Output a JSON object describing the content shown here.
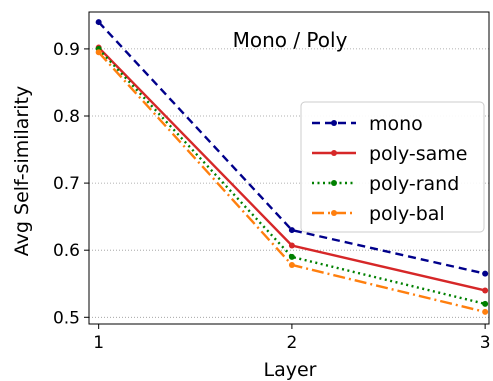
{
  "chart_data": {
    "type": "line",
    "title": "Mono / Poly",
    "xlabel": "Layer",
    "ylabel": "Avg Self-similarity",
    "x": [
      1,
      2,
      3
    ],
    "xlim": [
      0.95,
      3.02
    ],
    "ylim": [
      0.49,
      0.955
    ],
    "xticks": [
      1,
      2,
      3
    ],
    "yticks": [
      0.5,
      0.6,
      0.7,
      0.8,
      0.9
    ],
    "ytick_labels": [
      "0.5",
      "0.6",
      "0.7",
      "0.8",
      "0.9"
    ],
    "grid": "horizontal-dotted",
    "legend_position": "center-right",
    "series": [
      {
        "name": "mono",
        "values": [
          0.94,
          0.63,
          0.565
        ],
        "color": "#00008b",
        "dash": "8,5"
      },
      {
        "name": "poly-same",
        "values": [
          0.902,
          0.607,
          0.54
        ],
        "color": "#d62728",
        "dash": ""
      },
      {
        "name": "poly-rand",
        "values": [
          0.9,
          0.59,
          0.52
        ],
        "color": "#008000",
        "dash": "2,3.5"
      },
      {
        "name": "poly-bal",
        "values": [
          0.895,
          0.578,
          0.508
        ],
        "color": "#ff7f0e",
        "dash": "12,4,2,4"
      }
    ]
  }
}
